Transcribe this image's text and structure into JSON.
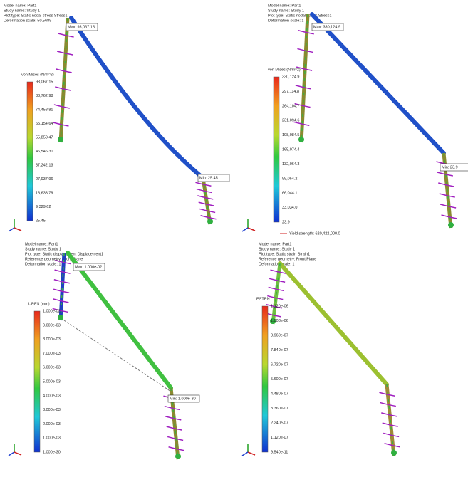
{
  "panels": [
    {
      "header": [
        "Model name: Part1",
        "Study name: Study 1",
        "Plot type: Static nodal stress Stress1",
        "Deformation scale: 50.5689"
      ],
      "legend_title": "von Mises (N/m^2)",
      "legend_ticks": [
        "93,067.15",
        "83,762.98",
        "74,458.81",
        "65,154.64",
        "55,850.47",
        "46,546.30",
        "37,242.13",
        "27,937.96",
        "18,633.79",
        "9,329.62",
        "25.45"
      ],
      "probes": [
        "Max: 93,067.15",
        "Min: 25.45"
      ]
    },
    {
      "header": [
        "Model name: Part1",
        "Study name: Study 1",
        "Plot type: Static nodal stress Stress1",
        "Deformation scale: 1"
      ],
      "legend_title": "von Mises (N/m^2)",
      "legend_ticks": [
        "330,124.9",
        "297,114.8",
        "264,104.7",
        "231,094.6",
        "198,084.5",
        "165,074.4",
        "132,064.3",
        "99,054.2",
        "66,044.1",
        "33,034.0",
        "23.9"
      ],
      "probes": [
        "Max: 330,124.9",
        "Min: 23.9"
      ],
      "footer": "Yield strength: 620,422,000.0"
    },
    {
      "header": [
        "Model name: Part1",
        "Study name: Study 1",
        "Plot type: Static displacement Displacement1",
        "Reference geometry: Front Plane",
        "Deformation scale: 1"
      ],
      "legend_title": "URES (mm)",
      "legend_ticks": [
        "1.000e-02",
        "9.000e-03",
        "8.000e-03",
        "7.000e-03",
        "6.000e-03",
        "5.000e-03",
        "4.000e-03",
        "3.000e-03",
        "2.000e-03",
        "1.000e-03",
        "1.000e-30"
      ],
      "probes": [
        "Max: 1.000e-02",
        "Min: 1.000e-30"
      ]
    },
    {
      "header": [
        "Model name: Part1",
        "Study name: Study 1",
        "Plot type: Static strain Strain1",
        "Reference geometry: Front Plane",
        "Deformation scale: 1"
      ],
      "legend_title": "ESTRN",
      "legend_ticks": [
        "1.120e-06",
        "1.008e-06",
        "8.960e-07",
        "7.840e-07",
        "6.720e-07",
        "5.600e-07",
        "4.480e-07",
        "3.360e-07",
        "2.240e-07",
        "1.120e-07",
        "9.540e-11"
      ],
      "probes": []
    }
  ]
}
